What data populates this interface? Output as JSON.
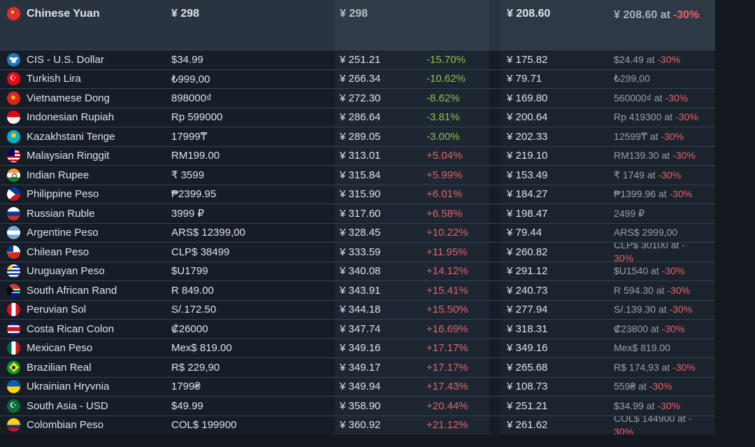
{
  "page": {
    "background": "#14181f",
    "table_background": "#161d27",
    "selected_row_background": "#2a3440",
    "green_percent_color": "#98bb4f",
    "red_percent_color": "#e2636b",
    "discount_red_color": "#e8626d"
  },
  "table": {
    "selected_row": {
      "flag": "china",
      "currency": "Chinese Yuan",
      "price": "¥ 298",
      "converted": "¥ 298",
      "pct": "",
      "discounted": "¥ 208.60",
      "sale": "¥ 208.60 at",
      "sale_discount": "-30%"
    },
    "rows": [
      {
        "flag": "cis",
        "currency": "CIS - U.S. Dollar",
        "price": "$34.99",
        "converted": "¥ 251.21",
        "pct": "-15.70%",
        "discounted": "¥ 175.82",
        "sale": "$24.49 at",
        "sale_discount": "-30%"
      },
      {
        "flag": "turkey",
        "currency": "Turkish Lira",
        "price": "₺999,00",
        "converted": "¥ 266.34",
        "pct": "-10.62%",
        "discounted": "¥ 79.71",
        "sale": "₺299,00",
        "sale_discount": ""
      },
      {
        "flag": "vietnam",
        "currency": "Vietnamese Dong",
        "price": "898000₫",
        "converted": "¥ 272.30",
        "pct": "-8.62%",
        "discounted": "¥ 169.80",
        "sale": "560000₫ at",
        "sale_discount": "-30%"
      },
      {
        "flag": "indonesia",
        "currency": "Indonesian Rupiah",
        "price": "Rp 599000",
        "converted": "¥ 286.64",
        "pct": "-3.81%",
        "discounted": "¥ 200.64",
        "sale": "Rp 419300 at",
        "sale_discount": "-30%"
      },
      {
        "flag": "kazakhstan",
        "currency": "Kazakhstani Tenge",
        "price": "17999₸",
        "converted": "¥ 289.05",
        "pct": "-3.00%",
        "discounted": "¥ 202.33",
        "sale": "12599₸ at",
        "sale_discount": "-30%"
      },
      {
        "flag": "malaysia",
        "currency": "Malaysian Ringgit",
        "price": "RM199.00",
        "converted": "¥ 313.01",
        "pct": "+5.04%",
        "discounted": "¥ 219.10",
        "sale": "RM139.30 at",
        "sale_discount": "-30%"
      },
      {
        "flag": "india",
        "currency": "Indian Rupee",
        "price": "₹ 3599",
        "converted": "¥ 315.84",
        "pct": "+5.99%",
        "discounted": "¥ 153.49",
        "sale": "₹ 1749 at",
        "sale_discount": "-30%"
      },
      {
        "flag": "philippines",
        "currency": "Philippine Peso",
        "price": "₱2399.95",
        "converted": "¥ 315.90",
        "pct": "+6.01%",
        "discounted": "¥ 184.27",
        "sale": "₱1399.96 at",
        "sale_discount": "-30%"
      },
      {
        "flag": "russia",
        "currency": "Russian Ruble",
        "price": "3999 ₽",
        "converted": "¥ 317.60",
        "pct": "+6.58%",
        "discounted": "¥ 198.47",
        "sale": "2499 ₽",
        "sale_discount": ""
      },
      {
        "flag": "argentina",
        "currency": "Argentine Peso",
        "price": "ARS$ 12399,00",
        "converted": "¥ 328.45",
        "pct": "+10.22%",
        "discounted": "¥ 79.44",
        "sale": "ARS$ 2999,00",
        "sale_discount": ""
      },
      {
        "flag": "chile",
        "currency": "Chilean Peso",
        "price": "CLP$ 38499",
        "converted": "¥ 333.59",
        "pct": "+11.95%",
        "discounted": "¥ 260.82",
        "sale": "CLP$ 30100 at",
        "sale_discount": "-30%"
      },
      {
        "flag": "uruguay",
        "currency": "Uruguayan Peso",
        "price": "$U1799",
        "converted": "¥ 340.08",
        "pct": "+14.12%",
        "discounted": "¥ 291.12",
        "sale": "$U1540 at",
        "sale_discount": "-30%"
      },
      {
        "flag": "south-africa",
        "currency": "South African Rand",
        "price": "R 849.00",
        "converted": "¥ 343.91",
        "pct": "+15.41%",
        "discounted": "¥ 240.73",
        "sale": "R 594.30 at",
        "sale_discount": "-30%"
      },
      {
        "flag": "peru",
        "currency": "Peruvian Sol",
        "price": "S/.172.50",
        "converted": "¥ 344.18",
        "pct": "+15.50%",
        "discounted": "¥ 277.94",
        "sale": "S/.139.30 at",
        "sale_discount": "-30%"
      },
      {
        "flag": "costa-rica",
        "currency": "Costa Rican Colon",
        "price": "₡26000",
        "converted": "¥ 347.74",
        "pct": "+16.69%",
        "discounted": "¥ 318.31",
        "sale": "₡23800 at",
        "sale_discount": "-30%"
      },
      {
        "flag": "mexico",
        "currency": "Mexican Peso",
        "price": "Mex$ 819.00",
        "converted": "¥ 349.16",
        "pct": "+17.17%",
        "discounted": "¥ 349.16",
        "sale": "Mex$ 819.00",
        "sale_discount": ""
      },
      {
        "flag": "brazil",
        "currency": "Brazilian Real",
        "price": "R$ 229,90",
        "converted": "¥ 349.17",
        "pct": "+17.17%",
        "discounted": "¥ 265.68",
        "sale": "R$ 174,93 at",
        "sale_discount": "-30%"
      },
      {
        "flag": "ukraine",
        "currency": "Ukrainian Hryvnia",
        "price": "1799₴",
        "converted": "¥ 349.94",
        "pct": "+17.43%",
        "discounted": "¥ 108.73",
        "sale": "559₴ at",
        "sale_discount": "-30%"
      },
      {
        "flag": "pakistan",
        "currency": "South Asia - USD",
        "price": "$49.99",
        "converted": "¥ 358.90",
        "pct": "+20.44%",
        "discounted": "¥ 251.21",
        "sale": "$34.99 at",
        "sale_discount": "-30%"
      },
      {
        "flag": "colombia",
        "currency": "Colombian Peso",
        "price": "COL$ 199900",
        "converted": "¥ 360.92",
        "pct": "+21.12%",
        "discounted": "¥ 261.62",
        "sale": "COL$ 144900 at",
        "sale_discount": "-30%"
      }
    ]
  }
}
